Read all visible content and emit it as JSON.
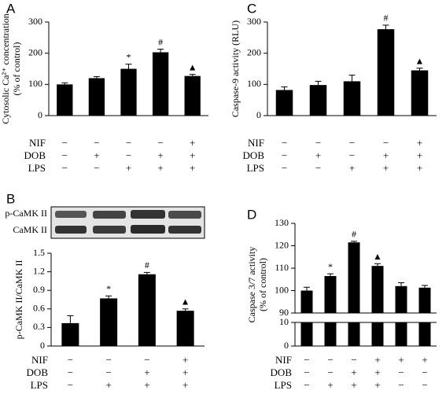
{
  "chart_data": [
    {
      "type": "bar",
      "panel": "A",
      "ylabel": [
        "Cytosolic Ca²⁺ concentration",
        "(% of control)"
      ],
      "values": [
        100,
        120,
        150,
        203,
        127
      ],
      "errors": [
        5,
        5,
        15,
        10,
        5
      ],
      "markers": [
        null,
        null,
        "*",
        "#",
        "▲"
      ],
      "color": "#000000",
      "ylim": [
        0,
        300
      ],
      "yticks": [
        0,
        100,
        200,
        300
      ],
      "conditions": [
        {
          "name": "NIF",
          "values": [
            "−",
            "−",
            "−",
            "−",
            "+"
          ]
        },
        {
          "name": "DOB",
          "values": [
            "−",
            "+",
            "−",
            "+",
            "+"
          ]
        },
        {
          "name": "LPS",
          "values": [
            "−",
            "−",
            "+",
            "+",
            "+"
          ]
        }
      ]
    },
    {
      "type": "bar",
      "panel": "B",
      "ylabel": [
        "p-CaMK II/CaMK II"
      ],
      "blot_labels": [
        "p-CaMK II",
        "CaMK II"
      ],
      "values": [
        0.37,
        0.77,
        1.16,
        0.57
      ],
      "errors": [
        0.12,
        0.04,
        0.03,
        0.03
      ],
      "markers": [
        null,
        "*",
        "#",
        "▲"
      ],
      "color": "#000000",
      "ylim": [
        0,
        1.5
      ],
      "yticks": [
        0,
        0.3,
        0.6,
        0.9,
        1.2,
        1.5
      ],
      "conditions": [
        {
          "name": "NIF",
          "values": [
            "−",
            "−",
            "−",
            "+"
          ]
        },
        {
          "name": "DOB",
          "values": [
            "−",
            "−",
            "+",
            "+"
          ]
        },
        {
          "name": "LPS",
          "values": [
            "−",
            "+",
            "+",
            "+"
          ]
        }
      ]
    },
    {
      "type": "bar",
      "panel": "C",
      "ylabel": [
        "Caspase-9 activity (RLU)"
      ],
      "values": [
        82,
        98,
        110,
        277,
        145
      ],
      "errors": [
        10,
        12,
        20,
        13,
        7
      ],
      "markers": [
        null,
        null,
        null,
        "#",
        "▲"
      ],
      "color": "#000000",
      "ylim": [
        0,
        300
      ],
      "yticks": [
        0,
        100,
        200,
        300
      ],
      "conditions": [
        {
          "name": "NIF",
          "values": [
            "−",
            "−",
            "−",
            "−",
            "+"
          ]
        },
        {
          "name": "DOB",
          "values": [
            "−",
            "+",
            "−",
            "+",
            "+"
          ]
        },
        {
          "name": "LPS",
          "values": [
            "−",
            "−",
            "+",
            "+",
            "+"
          ]
        }
      ]
    },
    {
      "type": "bar",
      "panel": "D",
      "ylabel": [
        "Caspase 3/7 activity",
        "(% of control)"
      ],
      "values": [
        100,
        106.5,
        121.5,
        111,
        102,
        101.3
      ],
      "errors": [
        1.5,
        1,
        0.5,
        1,
        1.5,
        1
      ],
      "markers": [
        null,
        "*",
        "#",
        "▲",
        null,
        null
      ],
      "color": "#000000",
      "ylim": [
        90,
        130
      ],
      "yticks": [
        90,
        100,
        110,
        120,
        130
      ],
      "ylim_lower": [
        0,
        10
      ],
      "yticks_lower": [
        0,
        10
      ],
      "conditions": [
        {
          "name": "NIF",
          "values": [
            "−",
            "−",
            "−",
            "+",
            "+",
            "+"
          ]
        },
        {
          "name": "DOB",
          "values": [
            "−",
            "−",
            "+",
            "+",
            "−",
            "−"
          ]
        },
        {
          "name": "LPS",
          "values": [
            "−",
            "+",
            "+",
            "+",
            "−",
            "−"
          ]
        }
      ]
    }
  ]
}
